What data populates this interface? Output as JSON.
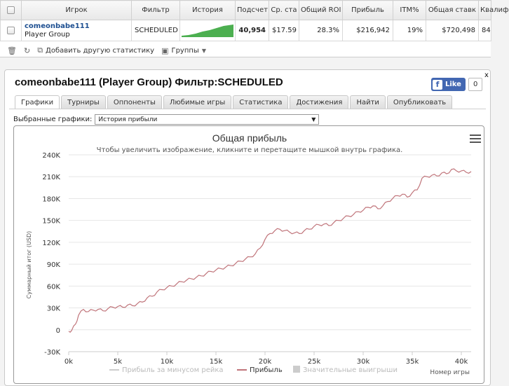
{
  "stats_table": {
    "columns": [
      "Игрок",
      "Фильтр",
      "История",
      "Подсчет",
      "Ср. ста",
      "Общий ROI",
      "Прибыль",
      "ITM%",
      "Общая ставк",
      "Квалиф"
    ],
    "row": {
      "player_name": "comeonbabe111",
      "player_group": "Player Group",
      "filter": "SCHEDULED",
      "count": "40,954",
      "avg_stake": "$17.59",
      "roi": "28.3%",
      "profit": "$216,942",
      "itm": "19%",
      "total_stake": "$720,498",
      "qualif": "84"
    },
    "toolbar": {
      "add_stats": "Добавить другую статистику",
      "groups": "Группы"
    },
    "sparkline_color": "#4caf50"
  },
  "panel": {
    "title": "comeonbabe111 (Player Group) Фильтр:SCHEDULED",
    "fb_like": "Like",
    "fb_count": "0",
    "close": "x",
    "tabs": [
      "Графики",
      "Турниры",
      "Оппоненты",
      "Любимые игры",
      "Статистика",
      "Достижения",
      "Найти",
      "Опубликовать"
    ],
    "active_tab": 0,
    "selected_charts_label": "Выбранные графики:",
    "selected_chart": "История прибыли"
  },
  "chart_data": {
    "type": "line",
    "title": "Общая прибыль",
    "subtitle": "Чтобы увеличить изображение, кликните и перетащите мышкой внутрь графика.",
    "ylabel": "Суммарный итог (USD)",
    "xlabel": "Номер игры",
    "x_ticks": [
      "0k",
      "5k",
      "10k",
      "15k",
      "20k",
      "25k",
      "30k",
      "35k",
      "40k"
    ],
    "y_ticks": [
      "-30K",
      "0",
      "30K",
      "60K",
      "90K",
      "120K",
      "150K",
      "180K",
      "210K",
      "240K"
    ],
    "xlim": [
      0,
      41000
    ],
    "ylim": [
      -30000,
      240000
    ],
    "grid": true,
    "legend_position": "bottom",
    "legend": [
      "Прибыль за минусом рейка",
      "Прибыль",
      "Значительные выигрыши"
    ],
    "series": [
      {
        "name": "Прибыль",
        "color": "#c0747a",
        "x": [
          0,
          300,
          700,
          1000,
          1500,
          2000,
          2500,
          3000,
          3500,
          4000,
          4500,
          5000,
          5500,
          6000,
          6500,
          7000,
          7500,
          8000,
          8500,
          9000,
          9500,
          10000,
          10500,
          11000,
          11500,
          12000,
          12500,
          13000,
          13500,
          14000,
          14500,
          15000,
          15500,
          16000,
          16500,
          17000,
          17500,
          18000,
          18500,
          19000,
          19500,
          20000,
          20500,
          21000,
          21500,
          22000,
          22500,
          23000,
          23500,
          24000,
          24500,
          25000,
          25500,
          26000,
          26500,
          27000,
          27500,
          28000,
          28500,
          29000,
          29500,
          30000,
          30500,
          31000,
          31500,
          32000,
          32500,
          33000,
          33500,
          34000,
          34500,
          35000,
          35500,
          36000,
          36500,
          37000,
          37500,
          38000,
          38500,
          39000,
          39500,
          40000,
          40500,
          41000
        ],
        "values": [
          -2000,
          -1000,
          8000,
          20000,
          28000,
          25000,
          27000,
          28000,
          26000,
          29000,
          31000,
          32000,
          31000,
          34000,
          33000,
          36000,
          38000,
          44000,
          46000,
          52000,
          55000,
          58000,
          60000,
          63000,
          66000,
          68000,
          70000,
          72000,
          74000,
          77000,
          80000,
          82000,
          84000,
          86000,
          88000,
          91000,
          94000,
          97000,
          100000,
          104000,
          112000,
          124000,
          132000,
          136000,
          138000,
          136000,
          134000,
          133000,
          132000,
          136000,
          138000,
          142000,
          144000,
          145000,
          143000,
          147000,
          150000,
          153000,
          156000,
          158000,
          162000,
          164000,
          168000,
          170000,
          166000,
          170000,
          176000,
          180000,
          184000,
          186000,
          182000,
          188000,
          192000,
          208000,
          210000,
          212000,
          211000,
          215000,
          214000,
          220000,
          218000,
          218000,
          216000,
          217000
        ]
      }
    ]
  }
}
